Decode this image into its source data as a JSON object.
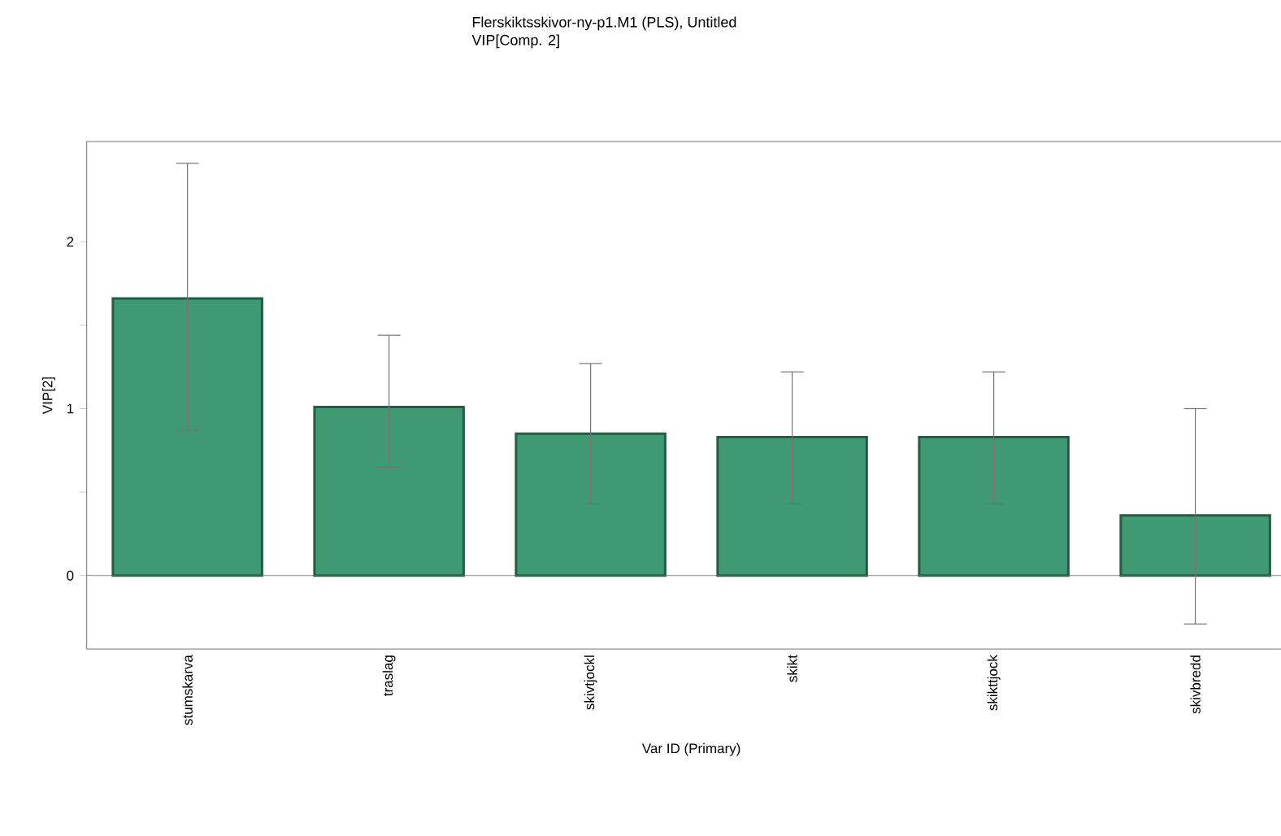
{
  "chart_data": {
    "type": "bar",
    "title": "Flerskiktsskivor-ny-p1.M1 (PLS), Untitled",
    "subtitle": "VIP[Comp. 2]",
    "xlabel": "Var ID (Primary)",
    "ylabel": "VIP[2]",
    "categories": [
      "stumskarva",
      "traslag",
      "skivtjockl",
      "skikt",
      "skikttjock",
      "skivbredd"
    ],
    "values": [
      1.66,
      1.01,
      0.85,
      0.83,
      0.83,
      0.36
    ],
    "errors": [
      [
        0.87,
        2.47
      ],
      [
        0.65,
        1.44
      ],
      [
        0.43,
        1.27
      ],
      [
        0.43,
        1.22
      ],
      [
        0.43,
        1.22
      ],
      [
        -0.29,
        1.0
      ]
    ],
    "color": "#3e9a72",
    "ylim": [
      -0.44,
      2.6
    ],
    "yticks": [
      0,
      {
        "value": 0.5,
        "label": null
      },
      1,
      {
        "value": 1.5,
        "label": null
      },
      2
    ]
  }
}
